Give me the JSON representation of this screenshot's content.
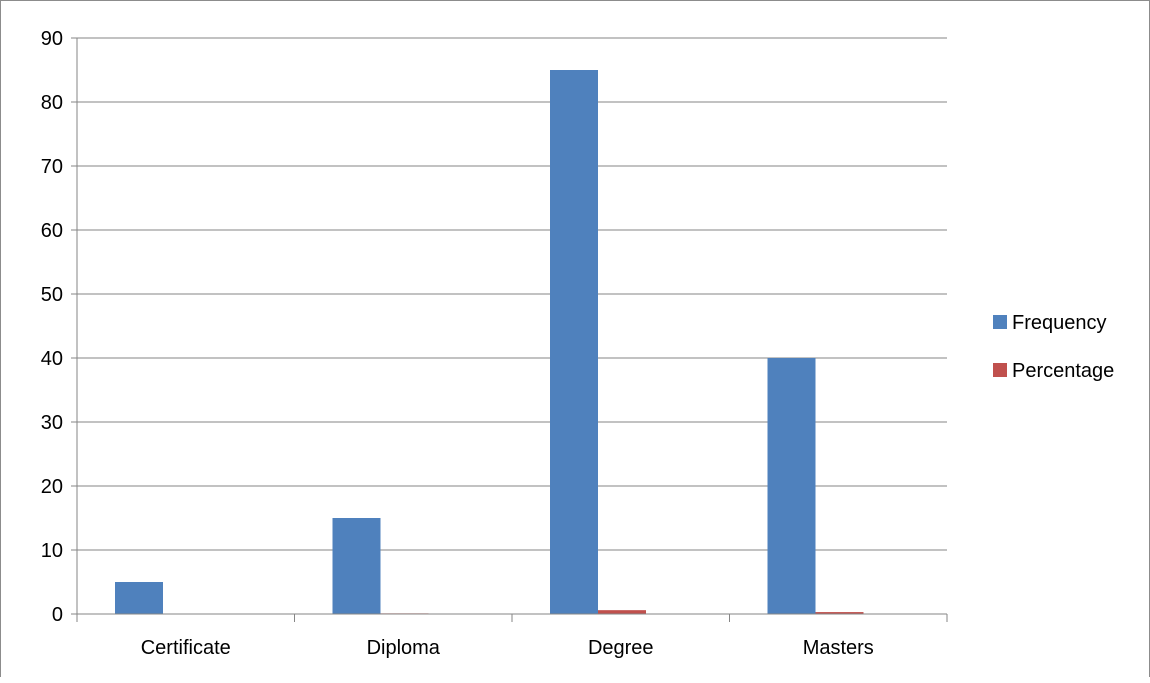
{
  "chart_data": {
    "type": "bar",
    "title": "",
    "xlabel": "",
    "ylabel": "",
    "categories": [
      "Certificate",
      "Diploma",
      "Degree",
      "Masters"
    ],
    "series": [
      {
        "name": "Frequency",
        "color": "#4f81bd",
        "values": [
          5,
          15,
          85,
          40
        ]
      },
      {
        "name": "Percentage",
        "color": "#c0504d",
        "values": [
          0.03,
          0.1,
          0.6,
          0.3
        ]
      }
    ],
    "ylim": [
      0,
      90
    ],
    "yticks": [
      "0",
      "10",
      "20",
      "30",
      "40",
      "50",
      "60",
      "70",
      "80",
      "90"
    ],
    "grid": true,
    "legend": "right"
  }
}
